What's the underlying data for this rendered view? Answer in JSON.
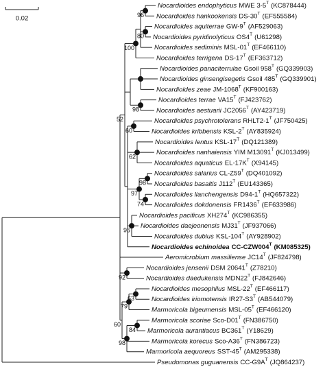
{
  "scale_bar": "0.02",
  "leaves": [
    {
      "name": "Nocardioides endophyticus",
      "strain": "MWE 3-5",
      "mark": "T",
      "accession": "(KC878444)"
    },
    {
      "name": "Nocardioides hankookensis",
      "strain": "DS-30",
      "mark": "T",
      "accession": "(EF555584)"
    },
    {
      "name": "Nocardioides aquiterrae",
      "strain": "GW-9",
      "mark": "T",
      "accession": "(AF529063)"
    },
    {
      "name": "Nocardioides pyridinolyticus",
      "strain": "OS4",
      "mark": "T",
      "accession": "(U61298)"
    },
    {
      "name": "Nocardioides sediminis",
      "strain": "MSL-01",
      "mark": "T",
      "accession": "(EF466110)"
    },
    {
      "name": "Nocardioides terrigena",
      "strain": "DS-17",
      "mark": "T",
      "accession": "(EF363712)"
    },
    {
      "name": "Nocardioides panaciterrulae",
      "strain": "Gsoil 958",
      "mark": "T",
      "accession": "(GQ339903)"
    },
    {
      "name": "Nocardioides ginsengisegetis",
      "strain": "Gsoil 485",
      "mark": "T",
      "accession": "(GQ339901)"
    },
    {
      "name": "Nocardioides zeae",
      "strain": "JM-1068",
      "mark": "T",
      "accession": "(KF900163)"
    },
    {
      "name": "Nocardioides terrae",
      "strain": "VA15",
      "mark": "T",
      "accession": "(FJ423762)"
    },
    {
      "name": "Nocardioides aestuarii",
      "strain": "JC2056",
      "mark": "T",
      "accession": "(AY423719)"
    },
    {
      "name": "Nocardioides psychrotolerans",
      "strain": "RHLT2-1",
      "mark": "T",
      "accession": "(JF750425)"
    },
    {
      "name": "Nocardioides kribbensis",
      "strain": "KSL-2",
      "mark": "T",
      "accession": "(AY835924)"
    },
    {
      "name": "Nocardioides lentus",
      "strain": "KSL-17",
      "mark": "T",
      "accession": "(DQ121389)"
    },
    {
      "name": "Nocardioides nanhaiensis",
      "strain": "YIM M13091",
      "mark": "T",
      "accession": "(KJ013499)"
    },
    {
      "name": "Nocardioides aquaticus",
      "strain": "EL-17K",
      "mark": "T",
      "accession": "(X94145)"
    },
    {
      "name": "Nocardioides salarius",
      "strain": "CL-Z59",
      "mark": "T",
      "accession": "(DQ401092)"
    },
    {
      "name": "Nocardioides basaltis",
      "strain": "J112",
      "mark": "T",
      "accession": "(EU143365)"
    },
    {
      "name": "Nocardioides lianchengensis",
      "strain": "D94-1",
      "mark": "T",
      "accession": "(HQ657322)"
    },
    {
      "name": "Nocardioides dokdonensis",
      "strain": "FR1436",
      "mark": "T",
      "accession": "(EF633986)"
    },
    {
      "name": "Nocardioides pacificus",
      "strain": "XH274",
      "mark": "T",
      "accession": "(KC986355)"
    },
    {
      "name": "Nocardioides daejeonensis",
      "strain": "MJ31",
      "mark": "T",
      "accession": "(JF937066)"
    },
    {
      "name": "Nocardioides dubius",
      "strain": "KSL-104",
      "mark": "T",
      "accession": "(AY928902)"
    },
    {
      "name": "Nocardioides echinoidea",
      "strain": "CC-CZW004",
      "mark": "T",
      "accession": "(KM085325)",
      "bold": true
    },
    {
      "name": "Aeromicrobium massiliense",
      "strain": "JC14",
      "mark": "T",
      "accession": "(JF824798)"
    },
    {
      "name": "Nocardioides jensenii",
      "strain": "DSM 20641",
      "mark": "T",
      "accession": "(Z78210)"
    },
    {
      "name": "Nocardioides daedukensis",
      "strain": "MDN22",
      "mark": "T",
      "accession": "(FJ842646)"
    },
    {
      "name": "Nocardioides mesophilus",
      "strain": "MSL-22",
      "mark": "T",
      "accession": "(EF466117)"
    },
    {
      "name": "Nocardioides iriomotensis",
      "strain": "IR27-S3",
      "mark": "T",
      "accession": "(AB544079)"
    },
    {
      "name": "Marmoricola bigeumensis",
      "strain": "MSL-05",
      "mark": "T",
      "accession": "(EF466120)"
    },
    {
      "name": "Marmoricola scoriae",
      "strain": "Sco-D01",
      "mark": "T",
      "accession": "(FN386750)"
    },
    {
      "name": "Marmoricola aurantiacus",
      "strain": "BC361",
      "mark": "T",
      "accession": "(Y18629)"
    },
    {
      "name": "Marmoricola korecus",
      "strain": "Sco-A36",
      "mark": "T",
      "accession": "(FN386723)"
    },
    {
      "name": "Marmoricola aequoreus",
      "strain": "SST-45",
      "mark": "T",
      "accession": "(AM295338)"
    },
    {
      "name": "Pseudomonas guguanensis",
      "strain": "CC-G9A",
      "mark": "T",
      "accession": "(JQ864237)"
    }
  ],
  "bootstrap_values": [
    96,
    80,
    100,
    52,
    98,
    60,
    62,
    98,
    97,
    74,
    96,
    92,
    63,
    79,
    60,
    84,
    98
  ]
}
